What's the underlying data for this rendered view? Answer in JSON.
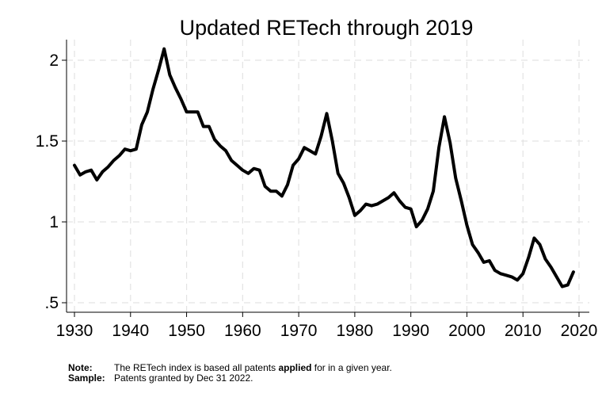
{
  "chart_data": {
    "type": "line",
    "title": "Updated RETech through 2019",
    "xlabel": "",
    "ylabel": "",
    "xlim": [
      1930,
      2020
    ],
    "ylim": [
      0.45,
      2.1
    ],
    "xticks": [
      1930,
      1940,
      1950,
      1960,
      1970,
      1980,
      1990,
      2000,
      2010,
      2020
    ],
    "xtick_labels": [
      "1930",
      "1940",
      "1950",
      "1960",
      "1970",
      "1980",
      "1990",
      "2000",
      "2010",
      "2020"
    ],
    "yticks": [
      0.5,
      1,
      1.5,
      2
    ],
    "ytick_labels": [
      ".5",
      "1",
      "1.5",
      "2"
    ],
    "grid": true,
    "legend": "none",
    "line_color": "#000000",
    "grid_color": "#e3e3e3",
    "series": [
      {
        "x": [
          1930,
          1931,
          1932,
          1933,
          1934,
          1935,
          1936,
          1937,
          1938,
          1939,
          1940,
          1941,
          1942,
          1943,
          1944,
          1945,
          1946,
          1947,
          1948,
          1949,
          1950,
          1951,
          1952,
          1953,
          1954,
          1955,
          1956,
          1957,
          1958,
          1959,
          1960,
          1961,
          1962,
          1963,
          1964,
          1965,
          1966,
          1967,
          1968,
          1969,
          1970,
          1971,
          1972,
          1973,
          1974,
          1975,
          1976,
          1977,
          1978,
          1979,
          1980,
          1981,
          1982,
          1983,
          1984,
          1985,
          1986,
          1987,
          1988,
          1989,
          1990,
          1991,
          1992,
          1993,
          1994,
          1995,
          1996,
          1997,
          1998,
          1999,
          2000,
          2001,
          2002,
          2003,
          2004,
          2005,
          2006,
          2007,
          2008,
          2009,
          2010,
          2011,
          2012,
          2013,
          2014,
          2015,
          2016,
          2017,
          2018,
          2019
        ],
        "y": [
          1.35,
          1.29,
          1.31,
          1.32,
          1.26,
          1.31,
          1.34,
          1.38,
          1.41,
          1.45,
          1.44,
          1.45,
          1.6,
          1.68,
          1.82,
          1.94,
          2.07,
          1.91,
          1.83,
          1.76,
          1.68,
          1.68,
          1.68,
          1.59,
          1.59,
          1.51,
          1.47,
          1.44,
          1.38,
          1.35,
          1.32,
          1.3,
          1.33,
          1.32,
          1.22,
          1.19,
          1.19,
          1.16,
          1.23,
          1.35,
          1.39,
          1.46,
          1.44,
          1.42,
          1.53,
          1.67,
          1.5,
          1.3,
          1.24,
          1.15,
          1.04,
          1.07,
          1.11,
          1.1,
          1.11,
          1.13,
          1.15,
          1.18,
          1.13,
          1.09,
          1.08,
          0.97,
          1.01,
          1.08,
          1.19,
          1.46,
          1.65,
          1.49,
          1.27,
          1.13,
          0.98,
          0.86,
          0.81,
          0.75,
          0.76,
          0.7,
          0.68,
          0.67,
          0.66,
          0.64,
          0.68,
          0.78,
          0.9,
          0.86,
          0.77,
          0.72,
          0.66,
          0.6,
          0.61,
          0.69
        ]
      }
    ]
  },
  "notes": {
    "note_key": "Note:",
    "note_text_before": "The RETech index is based all patents ",
    "note_text_bold": "applied",
    "note_text_after": " for in a given year.",
    "sample_key": "Sample:",
    "sample_text": "Patents granted by Dec 31 2022."
  }
}
